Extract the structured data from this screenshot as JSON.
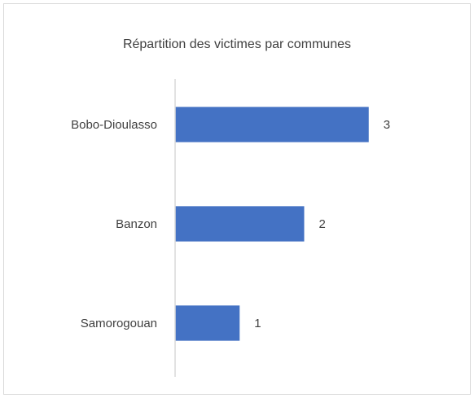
{
  "chart_data": {
    "type": "barh",
    "title": "Répartition des victimes par communes",
    "categories": [
      "Bobo-Dioulasso",
      "Banzon",
      "Samorogouan"
    ],
    "values": [
      3,
      2,
      1
    ],
    "color": "#4472c4",
    "xlim": [
      0,
      4
    ],
    "grid": false,
    "data_labels": true
  }
}
